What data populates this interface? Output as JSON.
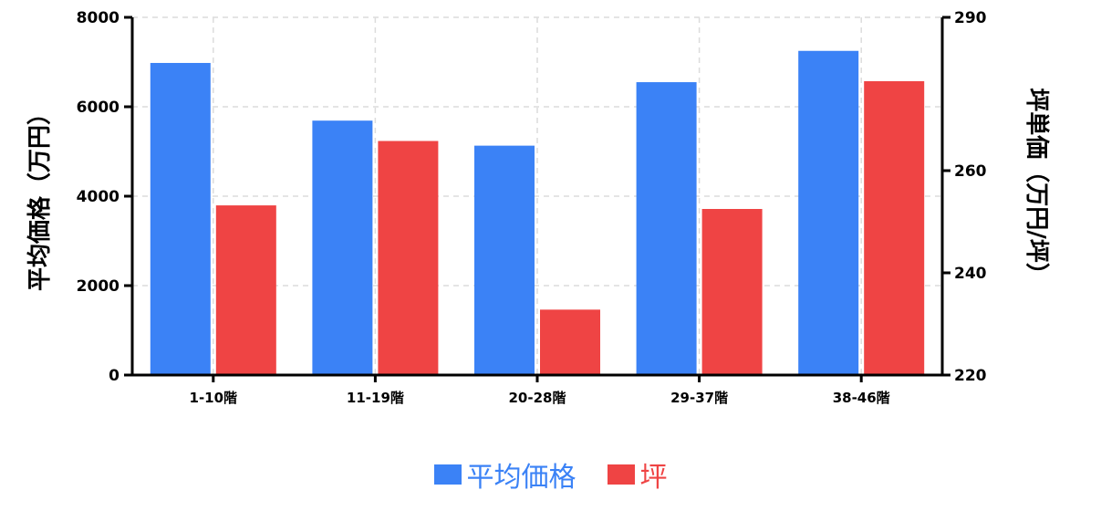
{
  "chart_data": {
    "type": "bar",
    "categories": [
      "1-10階",
      "11-19階",
      "20-28階",
      "29-37階",
      "38-46階"
    ],
    "series": [
      {
        "name": "平均価格",
        "axis": "left",
        "color": "#3b82f6",
        "values": [
          6980,
          5690,
          5130,
          6550,
          7250
        ]
      },
      {
        "name": "坪",
        "axis": "right",
        "color": "#ef4444",
        "values": [
          253.2,
          265.8,
          232.8,
          252.5,
          277.5
        ]
      }
    ],
    "ylabel": "平均価格（万円）",
    "y2label": "坪単価（万円/坪）",
    "ylim": [
      0,
      8000
    ],
    "y2lim": [
      220,
      290
    ],
    "yticks": [
      0,
      2000,
      4000,
      6000,
      8000
    ],
    "y2ticks": [
      220,
      240,
      260,
      290
    ],
    "grid": true,
    "legend_position": "bottom-center"
  }
}
